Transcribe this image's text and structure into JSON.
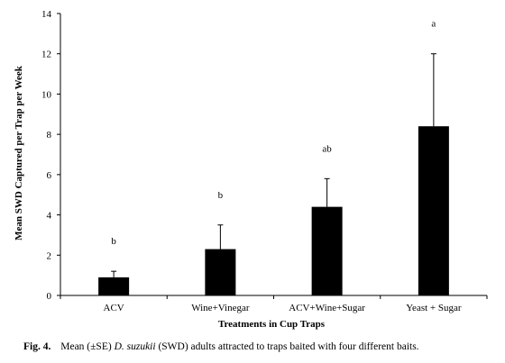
{
  "chart_data": {
    "type": "bar",
    "categories": [
      "ACV",
      "Wine+Vinegar",
      "ACV+Wine+Sugar",
      "Yeast + Sugar"
    ],
    "series": [
      {
        "values": [
          0.9,
          2.3,
          4.4,
          8.4
        ],
        "error_se": [
          0.3,
          1.2,
          1.4,
          3.6
        ],
        "significance": [
          "b",
          "b",
          "ab",
          "a"
        ]
      }
    ],
    "xlabel": "Treatments in Cup Traps",
    "ylabel": "Mean SWD Captured per Trap per Week",
    "ylim": [
      0,
      14
    ],
    "yticks": [
      0,
      2,
      4,
      6,
      8,
      10,
      12,
      14
    ],
    "grid": false,
    "legend": "none",
    "bar_color": "#000000"
  },
  "caption": {
    "label": "Fig. 4.",
    "text_before": "Mean (±SE) ",
    "species": "D. suzukii",
    "text_after": " (SWD) adults attracted to traps baited with four different baits."
  }
}
